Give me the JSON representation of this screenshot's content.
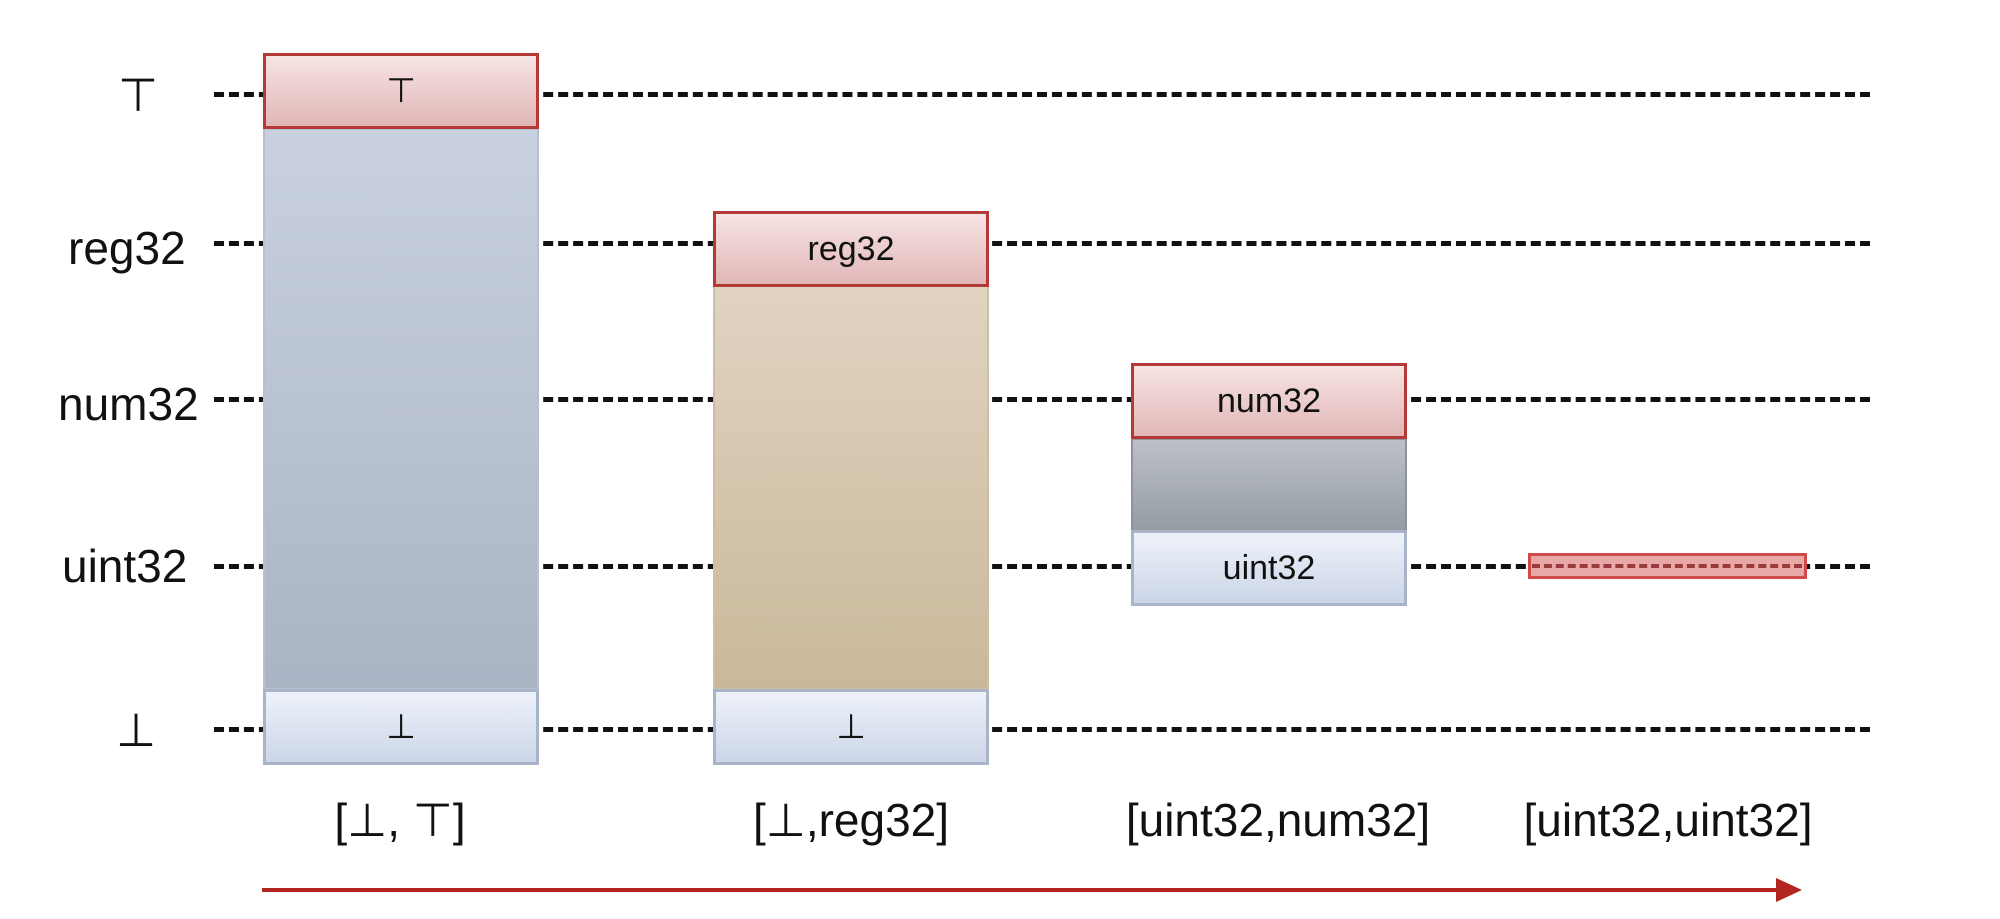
{
  "levels": {
    "top": "⊤",
    "reg32": "reg32",
    "num32": "num32",
    "uint32": "uint32",
    "bottom": "⊥"
  },
  "columns": [
    {
      "top_box": "⊤",
      "bottom_box": "⊥",
      "label": "[⊥, ⊤]"
    },
    {
      "top_box": "reg32",
      "bottom_box": "⊥",
      "label": "[⊥,reg32]"
    },
    {
      "top_box": "num32",
      "bottom_box": "uint32",
      "label": "[uint32,num32]"
    },
    {
      "label": "[uint32,uint32]"
    }
  ],
  "colors": {
    "dashed_line": "#111111",
    "red_box_border": "#b43a3a",
    "arrow": "#b32620"
  }
}
